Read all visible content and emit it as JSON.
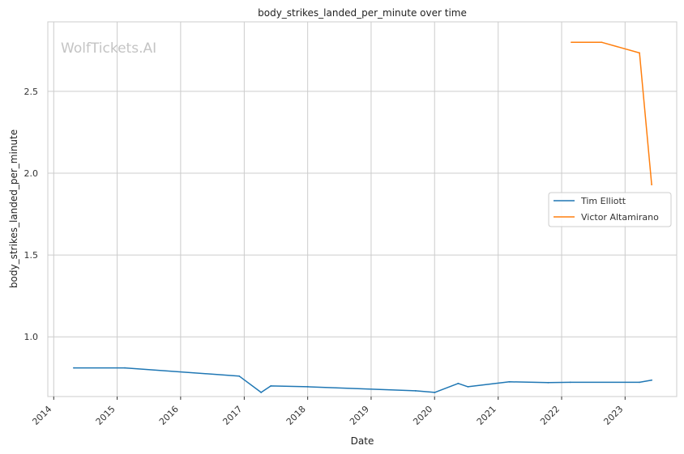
{
  "watermark": "WolfTickets.AI",
  "chart_data": {
    "type": "line",
    "title": "body_strikes_landed_per_minute over time",
    "xlabel": "Date",
    "ylabel": "body_strikes_landed_per_minute",
    "xlim": [
      "2013-11-28",
      "2023-10-25"
    ],
    "ylim": [
      0.635,
      2.925
    ],
    "x_ticks": [
      "2014",
      "2015",
      "2016",
      "2017",
      "2018",
      "2019",
      "2020",
      "2021",
      "2022",
      "2023"
    ],
    "y_ticks": [
      1.0,
      1.5,
      2.0,
      2.5
    ],
    "y_tick_labels": [
      "1.0",
      "1.5",
      "2.0",
      "2.5"
    ],
    "grid": true,
    "legend_position": "center-right",
    "series": [
      {
        "name": "Tim Elliott",
        "color": "#1f77b4",
        "points": [
          {
            "x": "2014-04-26",
            "y": 0.81
          },
          {
            "x": "2015-02-14",
            "y": 0.81
          },
          {
            "x": "2016-12-03",
            "y": 0.76
          },
          {
            "x": "2017-04-08",
            "y": 0.66
          },
          {
            "x": "2017-06-03",
            "y": 0.7
          },
          {
            "x": "2018-01-01",
            "y": 0.695
          },
          {
            "x": "2019-09-14",
            "y": 0.67
          },
          {
            "x": "2020-01-02",
            "y": 0.66
          },
          {
            "x": "2020-05-16",
            "y": 0.715
          },
          {
            "x": "2020-07-11",
            "y": 0.695
          },
          {
            "x": "2021-03-06",
            "y": 0.725
          },
          {
            "x": "2021-10-15",
            "y": 0.72
          },
          {
            "x": "2022-02-20",
            "y": 0.722
          },
          {
            "x": "2023-03-25",
            "y": 0.722
          },
          {
            "x": "2023-06-03",
            "y": 0.735
          }
        ]
      },
      {
        "name": "Victor Altamirano",
        "color": "#ff7f0e",
        "points": [
          {
            "x": "2022-02-26",
            "y": 2.8
          },
          {
            "x": "2022-08-20",
            "y": 2.8
          },
          {
            "x": "2023-03-25",
            "y": 2.735
          },
          {
            "x": "2023-06-03",
            "y": 1.93
          }
        ]
      }
    ]
  }
}
